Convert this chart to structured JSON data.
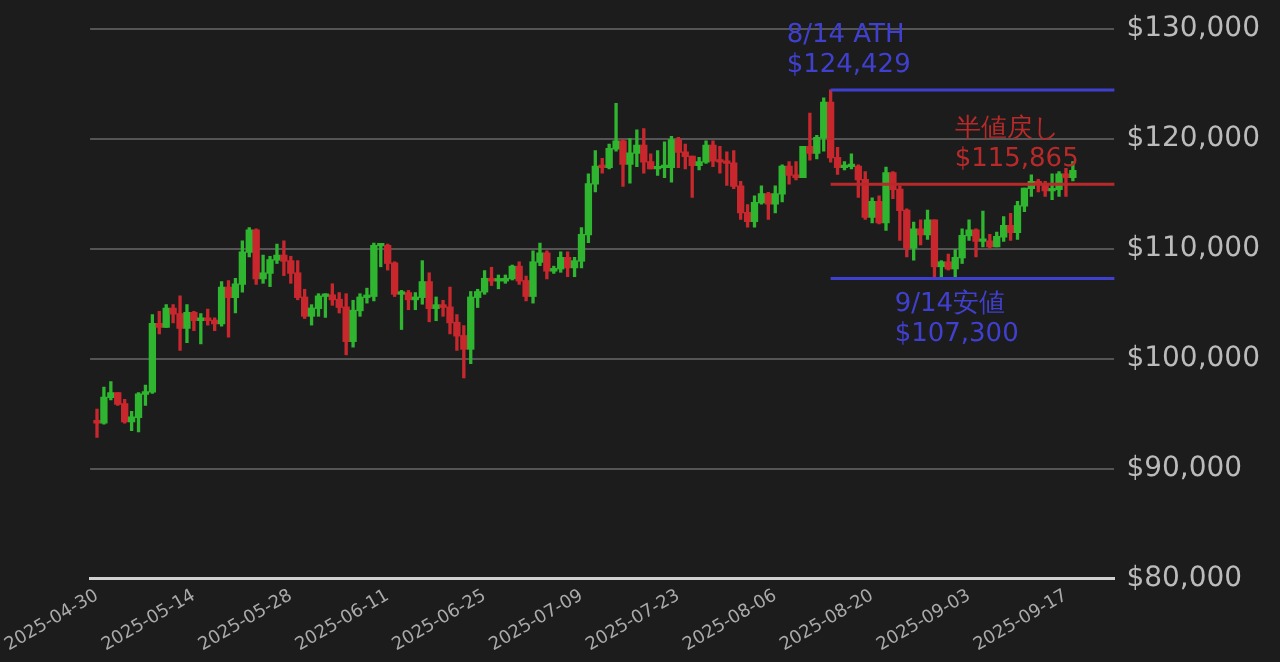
{
  "chart_data": {
    "type": "candlestick",
    "x": [
      "2025-04-30",
      "2025-05-01",
      "2025-05-02",
      "2025-05-03",
      "2025-05-04",
      "2025-05-05",
      "2025-05-06",
      "2025-05-07",
      "2025-05-08",
      "2025-05-09",
      "2025-05-10",
      "2025-05-11",
      "2025-05-12",
      "2025-05-13",
      "2025-05-14",
      "2025-05-15",
      "2025-05-16",
      "2025-05-17",
      "2025-05-18",
      "2025-05-19",
      "2025-05-20",
      "2025-05-21",
      "2025-05-22",
      "2025-05-23",
      "2025-05-24",
      "2025-05-25",
      "2025-05-26",
      "2025-05-27",
      "2025-05-28",
      "2025-05-29",
      "2025-05-30",
      "2025-05-31",
      "2025-06-01",
      "2025-06-02",
      "2025-06-03",
      "2025-06-04",
      "2025-06-05",
      "2025-06-06",
      "2025-06-07",
      "2025-06-08",
      "2025-06-09",
      "2025-06-10",
      "2025-06-11",
      "2025-06-12",
      "2025-06-13",
      "2025-06-14",
      "2025-06-15",
      "2025-06-16",
      "2025-06-17",
      "2025-06-18",
      "2025-06-19",
      "2025-06-20",
      "2025-06-21",
      "2025-06-22",
      "2025-06-23",
      "2025-06-24",
      "2025-06-25",
      "2025-06-26",
      "2025-06-27",
      "2025-06-28",
      "2025-06-29",
      "2025-06-30",
      "2025-07-01",
      "2025-07-02",
      "2025-07-03",
      "2025-07-04",
      "2025-07-05",
      "2025-07-06",
      "2025-07-07",
      "2025-07-08",
      "2025-07-09",
      "2025-07-10",
      "2025-07-11",
      "2025-07-12",
      "2025-07-13",
      "2025-07-14",
      "2025-07-15",
      "2025-07-16",
      "2025-07-17",
      "2025-07-18",
      "2025-07-19",
      "2025-07-20",
      "2025-07-21",
      "2025-07-22",
      "2025-07-23",
      "2025-07-24",
      "2025-07-25",
      "2025-07-26",
      "2025-07-27",
      "2025-07-28",
      "2025-07-29",
      "2025-07-30",
      "2025-07-31",
      "2025-08-01",
      "2025-08-02",
      "2025-08-03",
      "2025-08-04",
      "2025-08-05",
      "2025-08-06",
      "2025-08-07",
      "2025-08-08",
      "2025-08-09",
      "2025-08-10",
      "2025-08-11",
      "2025-08-12",
      "2025-08-13",
      "2025-08-14",
      "2025-08-15",
      "2025-08-16",
      "2025-08-17",
      "2025-08-18",
      "2025-08-19",
      "2025-08-20",
      "2025-08-21",
      "2025-08-22",
      "2025-08-23",
      "2025-08-24",
      "2025-08-25",
      "2025-08-26",
      "2025-08-27",
      "2025-08-28",
      "2025-08-29",
      "2025-08-30",
      "2025-08-31",
      "2025-09-01",
      "2025-09-02",
      "2025-09-03",
      "2025-09-04",
      "2025-09-05",
      "2025-09-06",
      "2025-09-07",
      "2025-09-08",
      "2025-09-09",
      "2025-09-10",
      "2025-09-11",
      "2025-09-12",
      "2025-09-13",
      "2025-09-14",
      "2025-09-15",
      "2025-09-16",
      "2025-09-17",
      "2025-09-18"
    ],
    "ohlc": [
      [
        94300,
        95400,
        92900,
        94200
      ],
      [
        94200,
        97400,
        94100,
        96500
      ],
      [
        96500,
        97900,
        96300,
        96900
      ],
      [
        96900,
        96900,
        95800,
        95900
      ],
      [
        95900,
        96300,
        94200,
        94300
      ],
      [
        94300,
        95200,
        93500,
        94700
      ],
      [
        94700,
        96900,
        93400,
        96800
      ],
      [
        96800,
        97600,
        95800,
        97000
      ],
      [
        97000,
        104000,
        96900,
        103200
      ],
      [
        103200,
        104300,
        102300,
        102900
      ],
      [
        102900,
        104900,
        102900,
        104600
      ],
      [
        104600,
        104900,
        103300,
        104100
      ],
      [
        104100,
        105700,
        100800,
        102800
      ],
      [
        102800,
        104900,
        101500,
        104200
      ],
      [
        104200,
        104300,
        102600,
        103500
      ],
      [
        103500,
        104100,
        101400,
        103700
      ],
      [
        103700,
        104500,
        103100,
        103500
      ],
      [
        103500,
        103700,
        102600,
        103200
      ],
      [
        103200,
        107000,
        103000,
        106500
      ],
      [
        106500,
        107100,
        102000,
        105600
      ],
      [
        105600,
        107300,
        104200,
        106800
      ],
      [
        106800,
        110700,
        106100,
        109700
      ],
      [
        109700,
        111900,
        109300,
        111700
      ],
      [
        111700,
        111800,
        106800,
        107300
      ],
      [
        107300,
        109400,
        106900,
        107800
      ],
      [
        107800,
        109300,
        106600,
        109000
      ],
      [
        109000,
        110400,
        108700,
        109400
      ],
      [
        109400,
        110700,
        107600,
        108900
      ],
      [
        108900,
        109300,
        106900,
        107800
      ],
      [
        107800,
        108900,
        105400,
        105600
      ],
      [
        105600,
        106300,
        103700,
        103900
      ],
      [
        103900,
        104900,
        103100,
        104600
      ],
      [
        104600,
        105900,
        103900,
        105700
      ],
      [
        105700,
        105900,
        103800,
        105800
      ],
      [
        105800,
        106800,
        104900,
        105400
      ],
      [
        105400,
        106000,
        104200,
        104700
      ],
      [
        104700,
        105900,
        100400,
        101600
      ],
      [
        101600,
        105300,
        101100,
        104400
      ],
      [
        104400,
        105900,
        103900,
        105600
      ],
      [
        105600,
        106400,
        105100,
        105700
      ],
      [
        105700,
        110500,
        105300,
        110300
      ],
      [
        110300,
        110400,
        108400,
        110300
      ],
      [
        110300,
        110400,
        108100,
        108700
      ],
      [
        108700,
        108800,
        105700,
        105900
      ],
      [
        105900,
        106200,
        102700,
        106000
      ],
      [
        106000,
        106200,
        104500,
        105400
      ],
      [
        105400,
        106000,
        104500,
        105600
      ],
      [
        105600,
        108900,
        105000,
        107000
      ],
      [
        107000,
        107800,
        103400,
        104600
      ],
      [
        104600,
        105600,
        103500,
        104900
      ],
      [
        104900,
        105300,
        103900,
        104700
      ],
      [
        104700,
        106500,
        102300,
        103300
      ],
      [
        103300,
        104000,
        100800,
        102100
      ],
      [
        102100,
        103000,
        98300,
        100900
      ],
      [
        100900,
        106100,
        99600,
        105600
      ],
      [
        105600,
        106300,
        104700,
        106100
      ],
      [
        106100,
        108000,
        105900,
        107300
      ],
      [
        107300,
        108300,
        106700,
        107100
      ],
      [
        107100,
        107600,
        106400,
        107100
      ],
      [
        107100,
        107600,
        106900,
        107300
      ],
      [
        107300,
        108500,
        107200,
        108400
      ],
      [
        108400,
        108800,
        106800,
        107100
      ],
      [
        107100,
        107500,
        105300,
        105700
      ],
      [
        105700,
        109800,
        105100,
        108800
      ],
      [
        108800,
        110500,
        108500,
        109600
      ],
      [
        109600,
        109800,
        107300,
        108000
      ],
      [
        108000,
        108400,
        107800,
        108200
      ],
      [
        108200,
        109700,
        107900,
        109200
      ],
      [
        109200,
        109700,
        107500,
        108300
      ],
      [
        108300,
        109200,
        107500,
        108900
      ],
      [
        108900,
        111900,
        108300,
        111300
      ],
      [
        111300,
        116800,
        110600,
        115900
      ],
      [
        115900,
        118900,
        115200,
        117500
      ],
      [
        117500,
        118200,
        116900,
        117400
      ],
      [
        117400,
        119500,
        117300,
        119100
      ],
      [
        119100,
        123200,
        118900,
        119800
      ],
      [
        119800,
        119900,
        115700,
        117700
      ],
      [
        117700,
        120000,
        116000,
        118700
      ],
      [
        118700,
        120800,
        117500,
        119400
      ],
      [
        119400,
        120900,
        116900,
        117900
      ],
      [
        117900,
        118600,
        117300,
        117300
      ],
      [
        117300,
        118900,
        116700,
        117400
      ],
      [
        117400,
        119700,
        116500,
        117400
      ],
      [
        117400,
        120200,
        116100,
        119900
      ],
      [
        119900,
        120100,
        117400,
        118800
      ],
      [
        118800,
        119500,
        117300,
        118400
      ],
      [
        118400,
        118400,
        114700,
        117600
      ],
      [
        117600,
        118300,
        117200,
        117900
      ],
      [
        117900,
        119800,
        117800,
        119400
      ],
      [
        119400,
        119800,
        117500,
        118000
      ],
      [
        118000,
        119300,
        116900,
        117900
      ],
      [
        117900,
        118800,
        115800,
        117800
      ],
      [
        117800,
        118900,
        115500,
        115700
      ],
      [
        115700,
        116100,
        112700,
        113300
      ],
      [
        113300,
        114000,
        112000,
        112500
      ],
      [
        112500,
        114800,
        112000,
        114200
      ],
      [
        114200,
        115700,
        114100,
        115000
      ],
      [
        115000,
        115100,
        112700,
        114100
      ],
      [
        114100,
        115700,
        113300,
        115000
      ],
      [
        115000,
        117600,
        114300,
        117500
      ],
      [
        117500,
        117900,
        115900,
        116700
      ],
      [
        116700,
        117900,
        116300,
        116500
      ],
      [
        116500,
        119300,
        116500,
        119300
      ],
      [
        119300,
        122300,
        118100,
        118700
      ],
      [
        118700,
        120300,
        118200,
        120100
      ],
      [
        120100,
        123700,
        118900,
        123300
      ],
      [
        123300,
        124429,
        117900,
        118300
      ],
      [
        118300,
        119200,
        116800,
        117400
      ],
      [
        117400,
        117900,
        117200,
        117500
      ],
      [
        117500,
        118600,
        117300,
        117500
      ],
      [
        117500,
        117600,
        114700,
        116300
      ],
      [
        116300,
        117000,
        112700,
        112900
      ],
      [
        112900,
        114600,
        112400,
        114300
      ],
      [
        114300,
        114800,
        112300,
        112400
      ],
      [
        112400,
        117400,
        111700,
        116900
      ],
      [
        116900,
        117000,
        114600,
        115400
      ],
      [
        115400,
        115700,
        110800,
        113500
      ],
      [
        113500,
        113600,
        109300,
        110100
      ],
      [
        110100,
        112400,
        109000,
        111800
      ],
      [
        111800,
        112600,
        110400,
        111300
      ],
      [
        111300,
        113500,
        110900,
        112600
      ],
      [
        112600,
        112600,
        107400,
        108400
      ],
      [
        108400,
        108900,
        107500,
        108800
      ],
      [
        108800,
        109500,
        108100,
        108200
      ],
      [
        108200,
        109900,
        107300,
        109200
      ],
      [
        109200,
        111800,
        108700,
        111200
      ],
      [
        111200,
        112600,
        110800,
        111700
      ],
      [
        111700,
        111800,
        109300,
        110700
      ],
      [
        110700,
        113400,
        110200,
        110700
      ],
      [
        110700,
        111300,
        110100,
        110200
      ],
      [
        110200,
        111500,
        110200,
        111100
      ],
      [
        111100,
        112900,
        110700,
        112100
      ],
      [
        112100,
        113200,
        110800,
        111500
      ],
      [
        111500,
        114300,
        110900,
        113900
      ],
      [
        113900,
        115500,
        113400,
        115500
      ],
      [
        115500,
        116700,
        114800,
        116100
      ],
      [
        116100,
        116300,
        115200,
        115900
      ],
      [
        115900,
        116100,
        114800,
        115300
      ],
      [
        115300,
        116800,
        114500,
        115400
      ],
      [
        115400,
        117000,
        114800,
        116800
      ],
      [
        116800,
        117300,
        114800,
        116500
      ],
      [
        116500,
        117900,
        116200,
        117100
      ]
    ],
    "xlim": [
      "2025-04-29",
      "2025-09-24"
    ],
    "xticks": [
      "2025-04-30",
      "2025-05-14",
      "2025-05-28",
      "2025-06-11",
      "2025-06-25",
      "2025-07-09",
      "2025-07-23",
      "2025-08-06",
      "2025-08-20",
      "2025-09-03",
      "2025-09-17"
    ],
    "ylim": [
      80000,
      130000
    ],
    "yticks": [
      {
        "value": 80000,
        "label": "$80,000"
      },
      {
        "value": 90000,
        "label": "$90,000"
      },
      {
        "value": 100000,
        "label": "$100,000"
      },
      {
        "value": 110000,
        "label": "$110,000"
      },
      {
        "value": 120000,
        "label": "$120,000"
      },
      {
        "value": 130000,
        "label": "$130,000"
      }
    ],
    "ref_lines": [
      {
        "axis": "y",
        "value": 124429,
        "label": "8/14 ATH\n$124,429",
        "color": "#4040d0"
      },
      {
        "axis": "y",
        "value": 115865,
        "label": "半値戻し\n$115,865",
        "color": "#b82a2a"
      },
      {
        "axis": "y",
        "value": 107300,
        "label": "9/14安値\n$107,300",
        "color": "#4040d0"
      }
    ],
    "grid": "y",
    "legend": false
  }
}
